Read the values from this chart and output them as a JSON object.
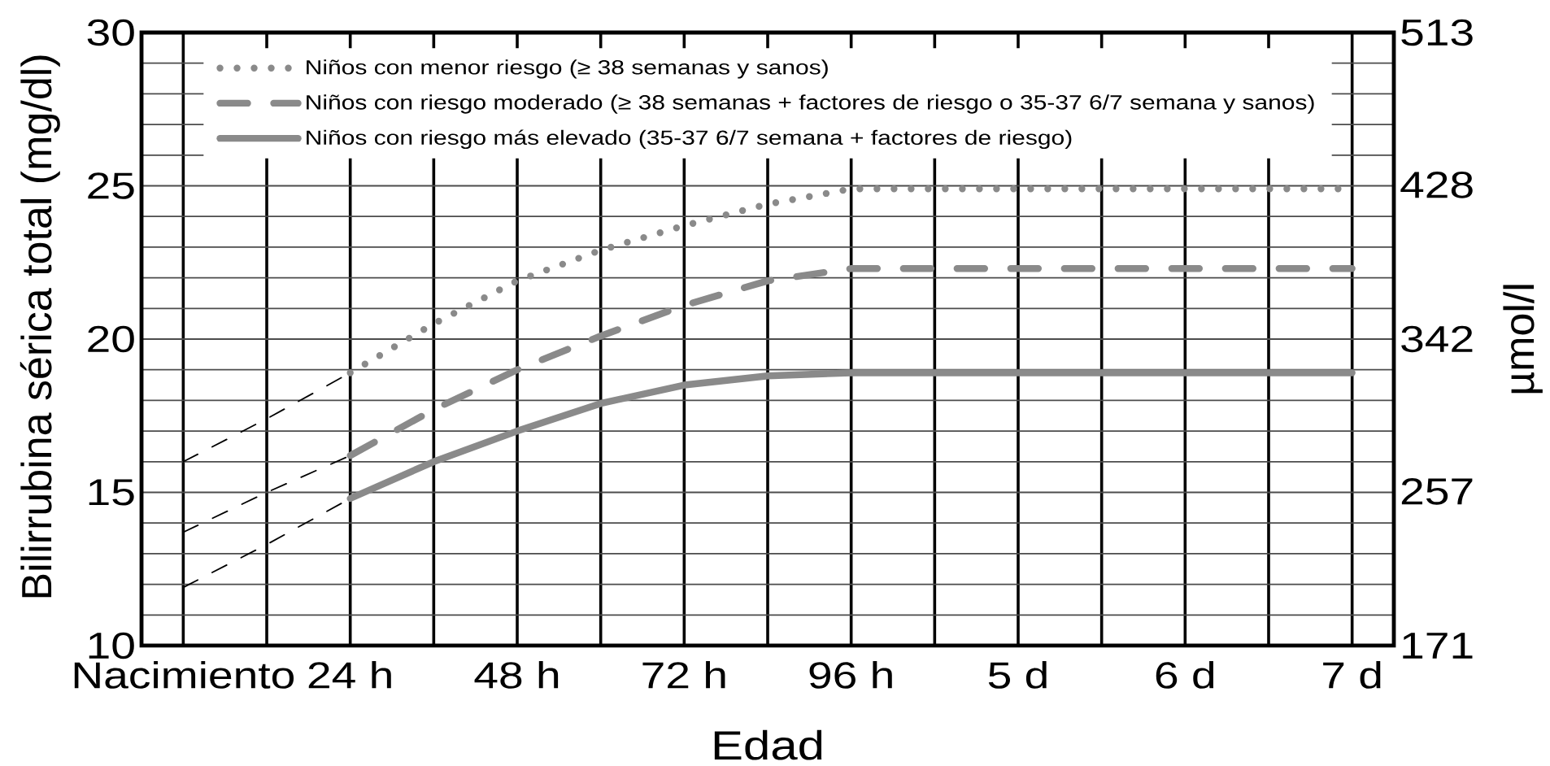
{
  "chart_data": {
    "type": "line",
    "xlabel": "Edad",
    "ylabel": "Bilirrubina sérica total (mg/dl)",
    "y2label": "µmol/l",
    "categories": [
      "Nacimiento",
      null,
      "24 h",
      null,
      "48 h",
      null,
      "72 h",
      null,
      "96 h",
      null,
      "5 d",
      null,
      "6 d",
      null,
      "7 d"
    ],
    "ylim": [
      10,
      30
    ],
    "yticks": [
      10,
      {
        "value": 11,
        "label": null
      },
      {
        "value": 12,
        "label": null
      },
      {
        "value": 13,
        "label": null
      },
      {
        "value": 14,
        "label": null
      },
      15,
      {
        "value": 16,
        "label": null
      },
      {
        "value": 17,
        "label": null
      },
      {
        "value": 18,
        "label": null
      },
      {
        "value": 19,
        "label": null
      },
      20,
      {
        "value": 21,
        "label": null
      },
      {
        "value": 22,
        "label": null
      },
      {
        "value": 23,
        "label": null
      },
      {
        "value": 24,
        "label": null
      },
      25,
      {
        "value": 26,
        "label": null
      },
      {
        "value": 27,
        "label": null
      },
      {
        "value": 28,
        "label": null
      },
      {
        "value": 29,
        "label": null
      },
      30
    ],
    "y2lim": [
      171,
      513
    ],
    "y2ticks": [
      171,
      257,
      342,
      428,
      513
    ],
    "grid": true,
    "legend": "top",
    "marker": "none",
    "series": [
      {
        "name": "Niños con menor riesgo (≥ 38 semanas y sanos)",
        "color": "#8a8a8a",
        "line_style": "dotted",
        "values": [
          null,
          null,
          18.9,
          20.5,
          21.9,
          22.9,
          23.7,
          24.4,
          24.9,
          24.9,
          24.9,
          24.9,
          24.9,
          24.9,
          24.9
        ]
      },
      {
        "name": "Niños con riesgo moderado (≥ 38 semanas + factores de riesgo o 35-37 6/7 semana y sanos)",
        "color": "#8a8a8a",
        "line_style": "dashed",
        "values": [
          null,
          null,
          16.2,
          17.7,
          19.0,
          20.1,
          21.1,
          21.9,
          22.3,
          22.3,
          22.3,
          22.3,
          22.3,
          22.3,
          22.3
        ]
      },
      {
        "name": "Niños con riesgo más elevado (35-37 6/7 semana + factores de riesgo)",
        "color": "#8a8a8a",
        "line_style": "solid",
        "values": [
          null,
          null,
          14.8,
          16.0,
          17.0,
          17.9,
          18.5,
          18.8,
          18.9,
          18.9,
          18.9,
          18.9,
          18.9,
          18.9,
          18.9
        ]
      },
      {
        "color": "#000000",
        "line_style": "dashed",
        "values": [
          16.0,
          17.4,
          18.9,
          null,
          null,
          null,
          null,
          null,
          null,
          null,
          null,
          null,
          null,
          null,
          null
        ]
      },
      {
        "color": "#000000",
        "line_style": "dashed",
        "values": [
          13.7,
          15.0,
          16.2,
          null,
          null,
          null,
          null,
          null,
          null,
          null,
          null,
          null,
          null,
          null,
          null
        ]
      },
      {
        "color": "#000000",
        "line_style": "dashed",
        "values": [
          11.9,
          13.3,
          14.8,
          null,
          null,
          null,
          null,
          null,
          null,
          null,
          null,
          null,
          null,
          null,
          null
        ]
      }
    ]
  }
}
